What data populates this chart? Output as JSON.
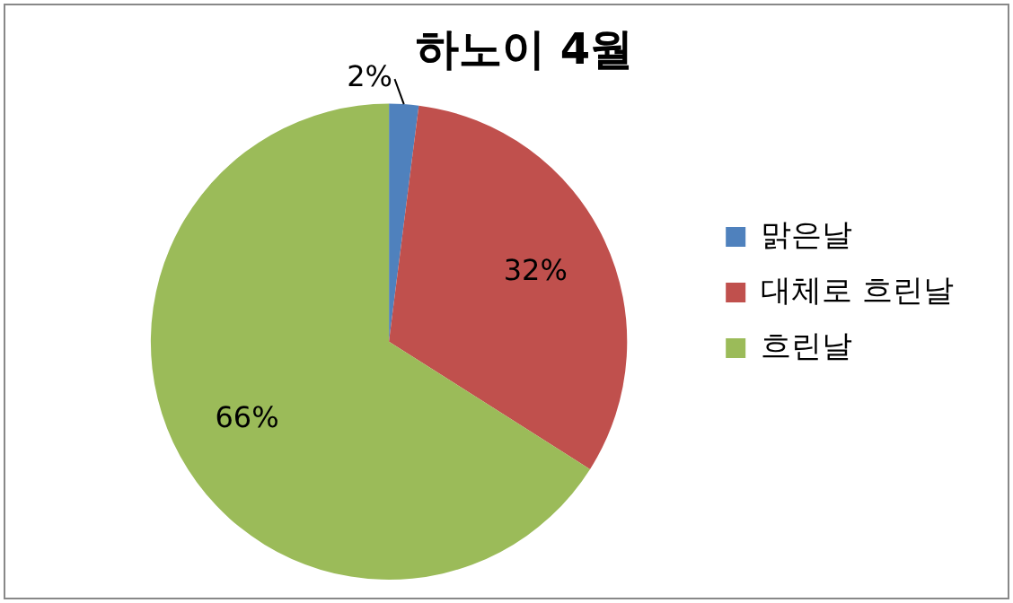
{
  "chart_data": {
    "type": "pie",
    "title": "하노이 4월",
    "categories": [
      "맑은날",
      "대체로 흐린날",
      "흐린날"
    ],
    "values": [
      2,
      32,
      66
    ],
    "colors": [
      "#4f81bd",
      "#c0504d",
      "#9bbb59"
    ],
    "value_labels": [
      "2%",
      "32%",
      "66%"
    ],
    "legend": "right"
  }
}
